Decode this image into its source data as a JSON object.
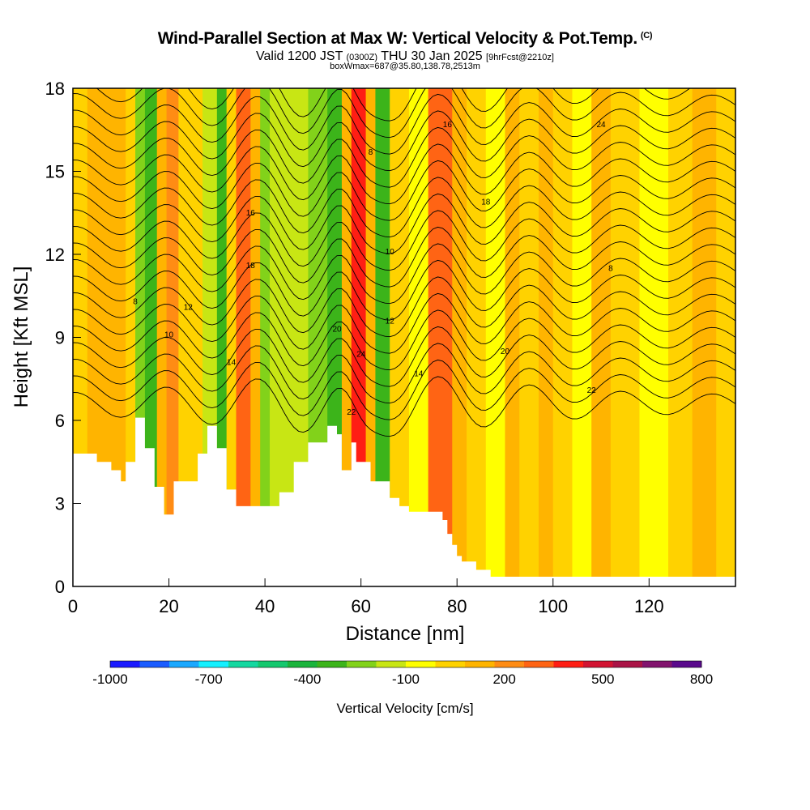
{
  "header": {
    "title": "Wind-Parallel Section at Max W: Vertical Velocity & Pot.Temp.",
    "title_mark": "(C)",
    "valid_prefix": "Valid 1200 JST",
    "valid_utc": "(0300Z)",
    "valid_date": "THU 30 Jan 2025",
    "forecast": "[9hrFcst@2210z]",
    "box_info": "boxWmax=687@35.80,138.78,2513m"
  },
  "chart_data": {
    "type": "heatmap",
    "xlabel": "Distance [nm]",
    "ylabel": "Height [Kft MSL]",
    "xlim": [
      0,
      138
    ],
    "ylim": [
      0,
      18
    ],
    "x_ticks": [
      0,
      20,
      40,
      60,
      80,
      100,
      120
    ],
    "y_ticks": [
      0,
      3,
      6,
      9,
      12,
      15,
      18
    ],
    "colorbar": {
      "label": "Vertical Velocity [cm/s]",
      "tick_labels": [
        "-1000",
        "-700",
        "-400",
        "-100",
        "200",
        "500",
        "800"
      ],
      "colors": [
        "#1a1aff",
        "#1a5cff",
        "#1aa8ff",
        "#14f0ff",
        "#14d8a0",
        "#14c86e",
        "#1ab43c",
        "#3cb41a",
        "#82d21a",
        "#c8e614",
        "#ffff00",
        "#ffd200",
        "#ffb400",
        "#ff8c14",
        "#ff6414",
        "#ff1e14",
        "#d21432",
        "#aa1446",
        "#82146e",
        "#5a0a8c"
      ]
    },
    "contour_labels": [
      "8",
      "10",
      "12",
      "14",
      "16",
      "18",
      "20",
      "22",
      "24"
    ]
  }
}
